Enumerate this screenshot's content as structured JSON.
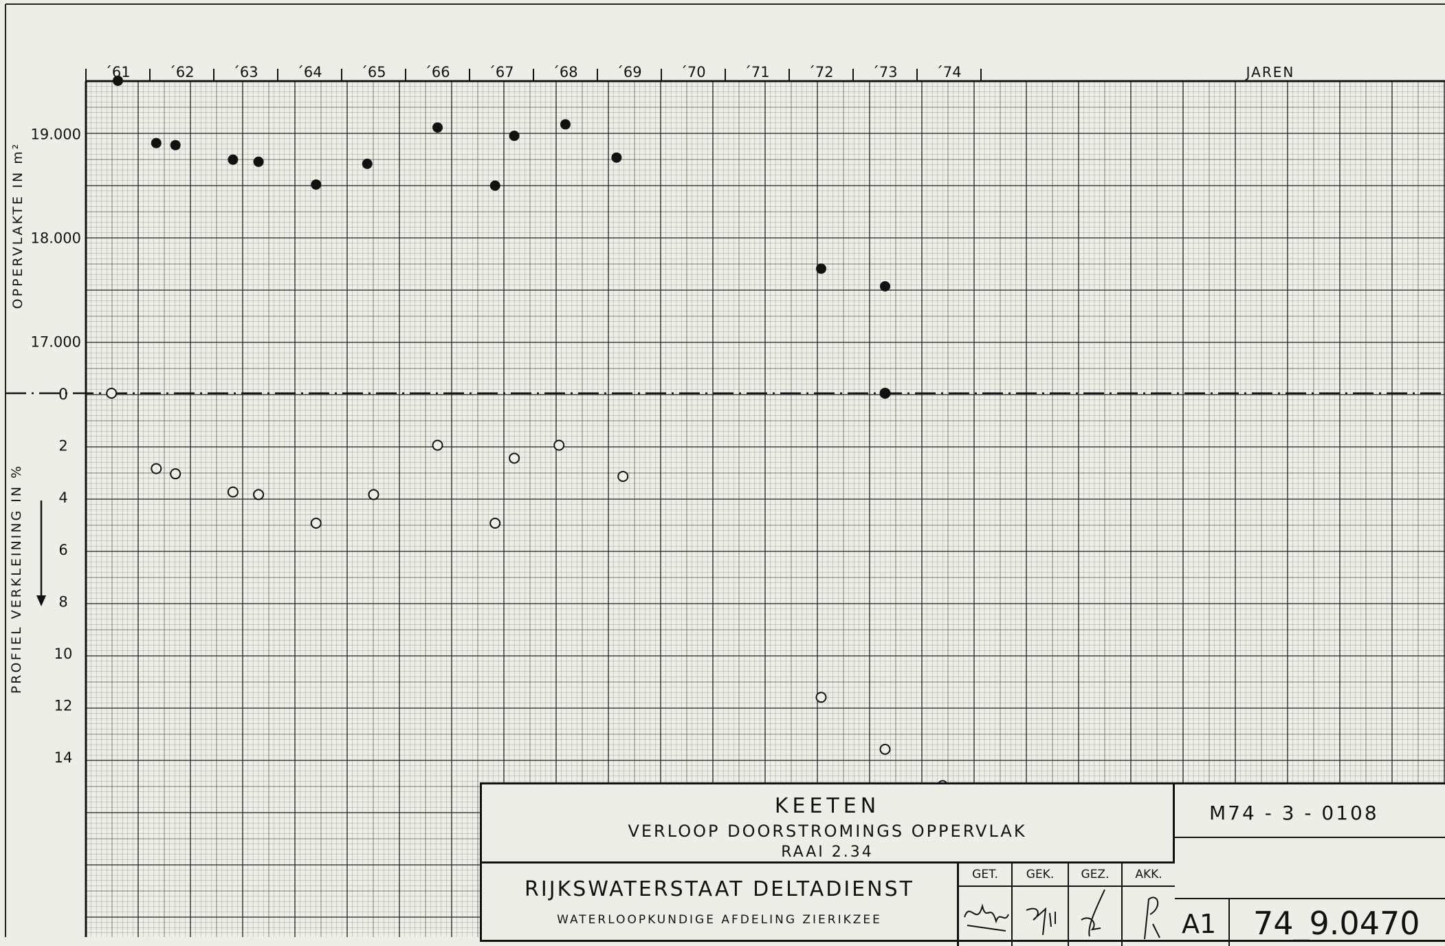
{
  "chart_data": {
    "type": "scatter",
    "xlabel": "JAREN",
    "x_ticks": [
      "´61",
      "´62",
      "´63",
      "´64",
      "´65",
      "´66",
      "´67",
      "´68",
      "´69",
      "´70",
      "´71",
      "´72",
      "´73",
      "´74"
    ],
    "upper": {
      "ylabel": "OPPERVLAKTE IN m²",
      "y_ticks": [
        "17.000",
        "18.000",
        "19.000"
      ],
      "ylim": [
        16500,
        19500
      ],
      "series": [
        {
          "marker": "filled",
          "x": [
            1961.5,
            1962.1,
            1962.4,
            1963.3,
            1963.7,
            1964.6,
            1965.4,
            1966.5,
            1967.4,
            1967.7,
            1968.5,
            1969.3,
            1972.5,
            1973.5
          ],
          "y": [
            19510,
            18910,
            18890,
            18750,
            18730,
            18510,
            18710,
            19060,
            18500,
            18980,
            19090,
            18770,
            17700,
            17530
          ]
        }
      ]
    },
    "zero_label": "0",
    "lower": {
      "ylabel": "PROFIEL VERKLEINING IN %",
      "y_ticks": [
        "2",
        "4",
        "6",
        "8",
        "10",
        "12",
        "14"
      ],
      "ylim": [
        0,
        16
      ],
      "series": [
        {
          "marker": "open",
          "x": [
            1961.4,
            1962.1,
            1962.4,
            1963.3,
            1963.7,
            1964.6,
            1965.5,
            1966.5,
            1967.4,
            1967.7,
            1968.4,
            1969.4,
            1972.5,
            1973.5,
            1974.4
          ],
          "y": [
            0,
            2.9,
            3.1,
            3.8,
            3.9,
            5.0,
            3.9,
            2.0,
            5.0,
            2.5,
            2.0,
            3.2,
            11.7,
            13.7,
            15.1
          ]
        }
      ]
    },
    "highlight_point": {
      "x": 1973.5,
      "y": 0
    },
    "grid": true
  },
  "title_block": {
    "location": "KEETEN",
    "subject": "VERLOOP DOORSTROMINGS OPPERVLAK",
    "raai": "RAAI 2.34",
    "org": "RIJKSWATERSTAAT DELTADIENST",
    "department": "WATERLOOPKUNDIGE AFDELING ZIERIKZEE",
    "signoffs": [
      "GET.",
      "GEK.",
      "GEZ.",
      "AKK."
    ],
    "drawing_code": "M74 - 3 - 0108",
    "format": "A1",
    "drawing_number": "74_9.0470"
  }
}
